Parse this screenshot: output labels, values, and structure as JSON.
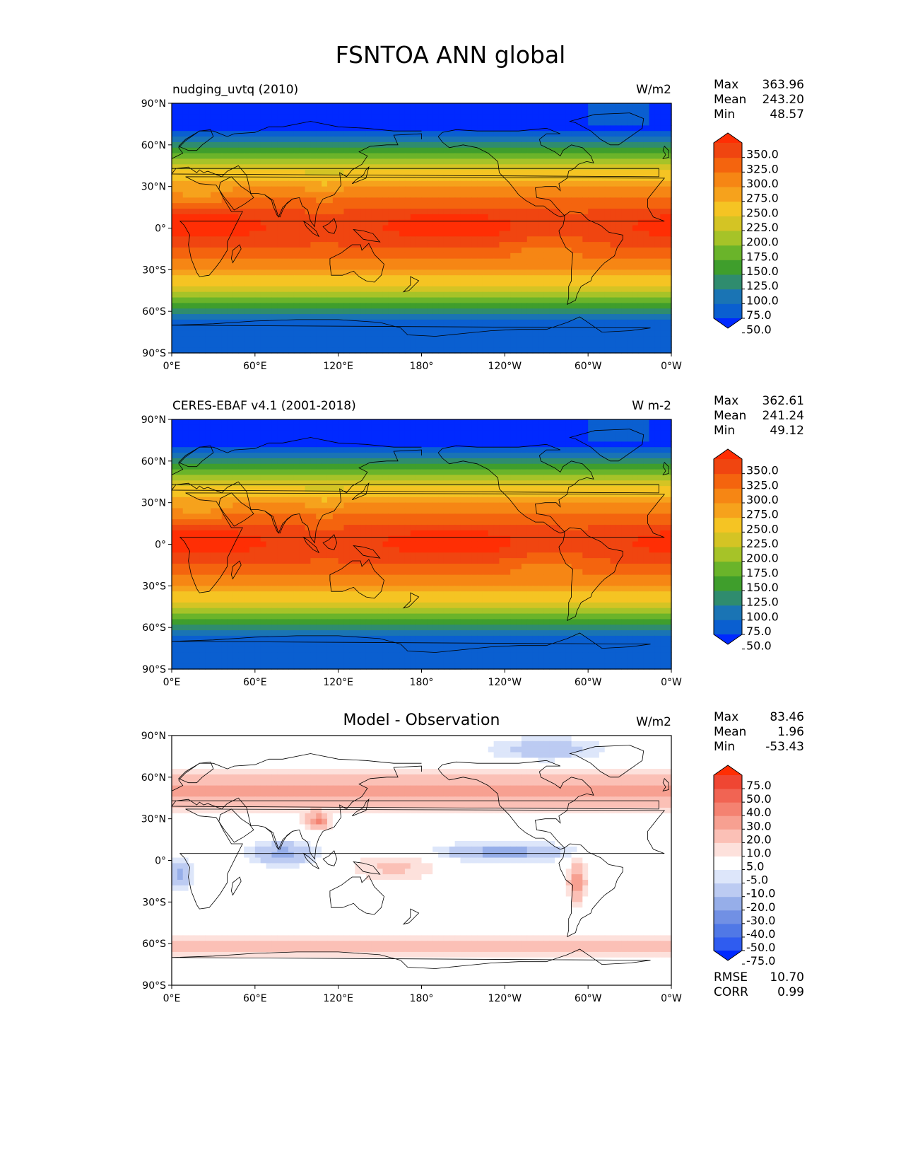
{
  "figure": {
    "title": "FSNTOA ANN global"
  },
  "axes": {
    "lat_ticks": [
      "90°N",
      "60°N",
      "30°N",
      "0°",
      "30°S",
      "60°S",
      "90°S"
    ],
    "lon_ticks": [
      "0°E",
      "60°E",
      "120°E",
      "180°",
      "120°W",
      "60°W",
      "0°W"
    ]
  },
  "panels": [
    {
      "left_title": "nudging_uvtq (2010)",
      "center_title": "",
      "units": "W/m2",
      "stats": [
        {
          "label": "Max",
          "value": "363.96"
        },
        {
          "label": "Mean",
          "value": "243.20"
        },
        {
          "label": "Min",
          "value": "48.57"
        }
      ],
      "colorbar": [
        "350.0",
        "325.0",
        "300.0",
        "275.0",
        "250.0",
        "225.0",
        "200.0",
        "175.0",
        "150.0",
        "125.0",
        "100.0",
        "75.0",
        "50.0"
      ],
      "footer": []
    },
    {
      "left_title": "CERES-EBAF v4.1 (2001-2018)",
      "center_title": "",
      "units": "W m-2",
      "stats": [
        {
          "label": "Max",
          "value": "362.61"
        },
        {
          "label": "Mean",
          "value": "241.24"
        },
        {
          "label": "Min",
          "value": "49.12"
        }
      ],
      "colorbar": [
        "350.0",
        "325.0",
        "300.0",
        "275.0",
        "250.0",
        "225.0",
        "200.0",
        "175.0",
        "150.0",
        "125.0",
        "100.0",
        "75.0",
        "50.0"
      ],
      "footer": []
    },
    {
      "left_title": "",
      "center_title": "Model - Observation",
      "units": "W/m2",
      "stats": [
        {
          "label": "Max",
          "value": "83.46"
        },
        {
          "label": "Mean",
          "value": "1.96"
        },
        {
          "label": "Min",
          "value": "-53.43"
        }
      ],
      "colorbar": [
        "75.0",
        "50.0",
        "40.0",
        "30.0",
        "20.0",
        "10.0",
        "5.0",
        "-5.0",
        "-10.0",
        "-20.0",
        "-30.0",
        "-40.0",
        "-50.0",
        "-75.0"
      ],
      "footer": [
        {
          "label": "RMSE",
          "value": "10.70"
        },
        {
          "label": "CORR",
          "value": "0.99"
        }
      ]
    }
  ],
  "colors": {
    "abs_palette": [
      "#0029ff",
      "#0a5fd0",
      "#1a74b4",
      "#2f8c6e",
      "#3f9e2c",
      "#6ab42a",
      "#a6c328",
      "#d4c424",
      "#f5c423",
      "#f6a21c",
      "#f68614",
      "#f4640e",
      "#f04510",
      "#ff2e04"
    ],
    "diff_palette": [
      "#0029ff",
      "#2f5cf0",
      "#5078e6",
      "#7190e4",
      "#96aee9",
      "#bccbf2",
      "#dde6fa",
      "#ffffff",
      "#fde1dc",
      "#fbc0b6",
      "#f7a091",
      "#f48271",
      "#f16453",
      "#ef4633",
      "#ff2e04"
    ]
  },
  "chart_data": [
    {
      "type": "heatmap",
      "title": "nudging_uvtq (2010)",
      "units": "W/m2",
      "x": [
        0,
        60,
        120,
        180,
        240,
        300,
        360
      ],
      "y": [
        90,
        60,
        30,
        0,
        -30,
        -60,
        -90
      ],
      "xlim": [
        0,
        360
      ],
      "ylim": [
        -90,
        90
      ],
      "levels": [
        50,
        75,
        100,
        125,
        150,
        175,
        200,
        225,
        250,
        275,
        300,
        325,
        350
      ],
      "stats": {
        "max": 363.96,
        "mean": 243.2,
        "min": 48.57
      },
      "grid": false
    },
    {
      "type": "heatmap",
      "title": "CERES-EBAF v4.1 (2001-2018)",
      "units": "W m-2",
      "x": [
        0,
        60,
        120,
        180,
        240,
        300,
        360
      ],
      "y": [
        90,
        60,
        30,
        0,
        -30,
        -60,
        -90
      ],
      "xlim": [
        0,
        360
      ],
      "ylim": [
        -90,
        90
      ],
      "levels": [
        50,
        75,
        100,
        125,
        150,
        175,
        200,
        225,
        250,
        275,
        300,
        325,
        350
      ],
      "stats": {
        "max": 362.61,
        "mean": 241.24,
        "min": 49.12
      },
      "grid": false
    },
    {
      "type": "heatmap",
      "title": "Model - Observation",
      "units": "W/m2",
      "x": [
        0,
        60,
        120,
        180,
        240,
        300,
        360
      ],
      "y": [
        90,
        60,
        30,
        0,
        -30,
        -60,
        -90
      ],
      "xlim": [
        0,
        360
      ],
      "ylim": [
        -90,
        90
      ],
      "levels": [
        -75,
        -50,
        -40,
        -30,
        -20,
        -10,
        -5,
        5,
        10,
        20,
        30,
        40,
        50,
        75
      ],
      "stats": {
        "max": 83.46,
        "mean": 1.96,
        "min": -53.43,
        "rmse": 10.7,
        "corr": 0.99
      },
      "grid": false
    }
  ]
}
